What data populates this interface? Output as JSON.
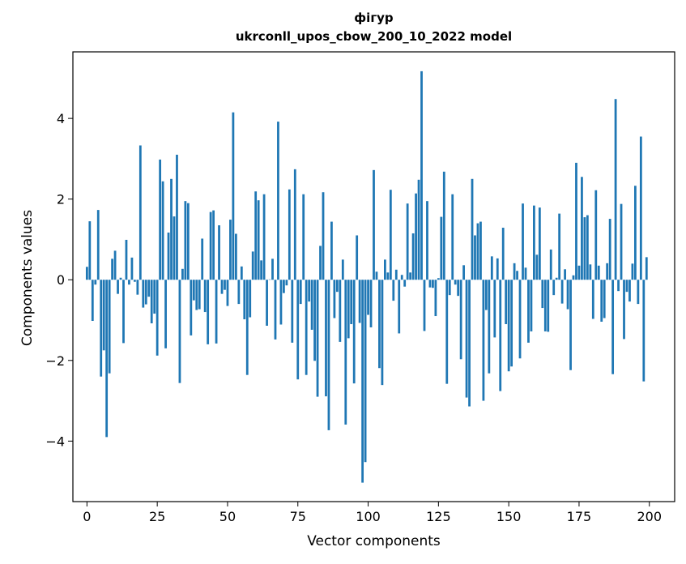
{
  "chart_data": {
    "type": "bar",
    "title_line1": "фігур",
    "title_line2": "ukrconll_upos_cbow_200_10_2022 model",
    "xlabel": "Vector components",
    "ylabel": "Components values",
    "xlim": [
      -5,
      209
    ],
    "ylim": [
      -5.5,
      5.65
    ],
    "xticks": [
      0,
      25,
      50,
      75,
      100,
      125,
      150,
      175,
      200
    ],
    "xtick_labels": [
      "0",
      "25",
      "50",
      "75",
      "100",
      "125",
      "150",
      "175",
      "200"
    ],
    "yticks": [
      -4,
      -2,
      0,
      2,
      4
    ],
    "ytick_labels": [
      "−4",
      "−2",
      "0",
      "2",
      "4"
    ],
    "bar_color": "#1f77b4",
    "grid": false,
    "x": [
      0,
      1,
      2,
      3,
      4,
      5,
      6,
      7,
      8,
      9,
      10,
      11,
      12,
      13,
      14,
      15,
      16,
      17,
      18,
      19,
      20,
      21,
      22,
      23,
      24,
      25,
      26,
      27,
      28,
      29,
      30,
      31,
      32,
      33,
      34,
      35,
      36,
      37,
      38,
      39,
      40,
      41,
      42,
      43,
      44,
      45,
      46,
      47,
      48,
      49,
      50,
      51,
      52,
      53,
      54,
      55,
      56,
      57,
      58,
      59,
      60,
      61,
      62,
      63,
      64,
      65,
      66,
      67,
      68,
      69,
      70,
      71,
      72,
      73,
      74,
      75,
      76,
      77,
      78,
      79,
      80,
      81,
      82,
      83,
      84,
      85,
      86,
      87,
      88,
      89,
      90,
      91,
      92,
      93,
      94,
      95,
      96,
      97,
      98,
      99,
      100,
      101,
      102,
      103,
      104,
      105,
      106,
      107,
      108,
      109,
      110,
      111,
      112,
      113,
      114,
      115,
      116,
      117,
      118,
      119,
      120,
      121,
      122,
      123,
      124,
      125,
      126,
      127,
      128,
      129,
      130,
      131,
      132,
      133,
      134,
      135,
      136,
      137,
      138,
      139,
      140,
      141,
      142,
      143,
      144,
      145,
      146,
      147,
      148,
      149,
      150,
      151,
      152,
      153,
      154,
      155,
      156,
      157,
      158,
      159,
      160,
      161,
      162,
      163,
      164,
      165,
      166,
      167,
      168,
      169,
      170,
      171,
      172,
      173,
      174,
      175,
      176,
      177,
      178,
      179,
      180,
      181,
      182,
      183,
      184,
      185,
      186,
      187,
      188,
      189,
      190,
      191,
      192,
      193,
      194,
      195,
      196,
      197,
      198,
      199
    ],
    "values": [
      0.32,
      1.45,
      -1.02,
      -0.12,
      1.73,
      -2.4,
      -1.75,
      -3.9,
      -2.32,
      0.52,
      0.72,
      -0.35,
      0.05,
      -1.57,
      0.99,
      -0.12,
      0.55,
      -0.05,
      -0.37,
      3.33,
      -0.69,
      -0.61,
      -0.42,
      -1.08,
      -0.84,
      -1.88,
      2.98,
      2.44,
      -1.7,
      1.17,
      2.5,
      1.57,
      3.1,
      -2.56,
      0.27,
      1.95,
      1.9,
      -1.38,
      -0.51,
      -0.75,
      -0.73,
      1.02,
      -0.8,
      -1.6,
      1.68,
      1.72,
      -1.58,
      1.35,
      -0.35,
      -0.25,
      -0.65,
      1.49,
      4.15,
      1.14,
      -0.6,
      0.33,
      -0.98,
      -2.36,
      -0.93,
      0.7,
      2.19,
      1.97,
      0.48,
      2.12,
      -1.14,
      0.01,
      0.52,
      -1.48,
      3.92,
      -1.11,
      -0.33,
      -0.14,
      2.24,
      -1.56,
      2.74,
      -2.47,
      -0.6,
      2.12,
      -2.36,
      -0.54,
      -1.24,
      -2.01,
      -2.9,
      0.84,
      2.17,
      -2.89,
      -3.73,
      1.44,
      -0.95,
      -0.3,
      -1.54,
      0.5,
      -3.59,
      -1.45,
      -1.1,
      -2.57,
      1.1,
      -1.07,
      -5.03,
      -4.52,
      -0.87,
      -1.18,
      2.72,
      0.2,
      -2.19,
      -2.61,
      0.5,
      0.18,
      2.23,
      -0.52,
      0.25,
      -1.33,
      0.12,
      -0.17,
      1.89,
      0.18,
      1.15,
      2.14,
      2.48,
      5.17,
      -1.27,
      1.95,
      -0.19,
      -0.2,
      -0.9,
      0.04,
      1.56,
      2.68,
      -2.58,
      -0.38,
      2.12,
      -0.12,
      -0.4,
      -1.97,
      0.36,
      -2.92,
      -3.14,
      2.5,
      1.1,
      1.4,
      1.44,
      -3.0,
      -0.75,
      -2.32,
      0.58,
      -1.43,
      0.53,
      -2.76,
      1.29,
      -1.1,
      -2.27,
      -2.15,
      0.41,
      0.22,
      -1.95,
      1.89,
      0.3,
      -1.56,
      -1.28,
      1.84,
      0.62,
      1.79,
      -0.7,
      -1.28,
      -1.29,
      0.75,
      -0.38,
      0.05,
      1.64,
      -0.59,
      0.26,
      -0.73,
      -2.24,
      0.11,
      2.9,
      0.35,
      2.55,
      1.55,
      1.6,
      0.38,
      -0.97,
      2.22,
      0.35,
      -1.04,
      -0.95,
      0.41,
      1.51,
      -2.34,
      4.48,
      -0.28,
      1.88,
      -1.47,
      -0.3,
      -0.54,
      0.4,
      2.33,
      -0.6,
      3.55,
      -2.52,
      0.56
    ]
  }
}
